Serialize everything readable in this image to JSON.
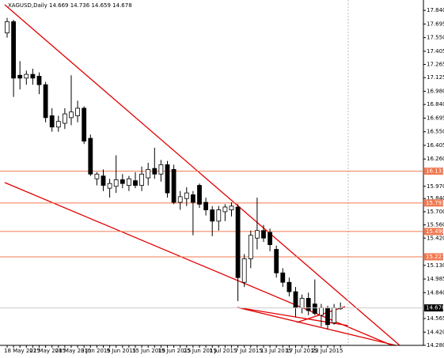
{
  "chart_data": {
    "type": "candlestick",
    "title": "XAGUSD,Daily 14.669 14.736 14.659 14.678",
    "categories": [
      "18 May 2015",
      null,
      null,
      null,
      "22 May 2015",
      null,
      null,
      null,
      "28 May 2015",
      null,
      null,
      null,
      "3 Jun 2015",
      null,
      null,
      null,
      "9 Jun 2015",
      null,
      null,
      null,
      "15 Jun 2015",
      null,
      null,
      null,
      "19 Jun 2015",
      null,
      null,
      null,
      "25 Jun 2015",
      null,
      null,
      null,
      "1 Jul 2015",
      null,
      null,
      null,
      "7 Jul 2015",
      null,
      null,
      null,
      "13 Jul 2015",
      null,
      null,
      null,
      "17 Jul 2015",
      null,
      null,
      null,
      "23 Jul 2015",
      null,
      null,
      null,
      null
    ],
    "open": [
      17.6,
      17.72,
      17.15,
      17.12,
      17.16,
      17.14,
      17.05,
      16.72,
      16.6,
      16.64,
      16.7,
      16.72,
      16.8,
      16.48,
      16.05,
      16.08,
      15.95,
      15.97,
      16.04,
      15.98,
      16.03,
      15.98,
      16.06,
      16.16,
      16.1,
      16.2,
      16.15,
      15.8,
      15.84,
      15.88,
      15.98,
      15.8,
      15.72,
      15.6,
      15.7,
      15.72,
      15.75,
      14.95,
      15.2,
      15.42,
      15.5,
      15.48,
      15.3,
      15.05,
      14.95,
      14.85,
      14.68,
      14.78,
      14.72,
      14.6,
      14.68,
      14.52,
      14.669
    ],
    "high": [
      17.76,
      17.74,
      17.3,
      17.2,
      17.22,
      17.18,
      17.08,
      16.8,
      16.72,
      16.8,
      17.15,
      16.88,
      16.82,
      16.52,
      16.12,
      16.15,
      16.05,
      16.3,
      16.1,
      16.08,
      16.12,
      16.18,
      16.22,
      16.38,
      16.25,
      16.24,
      16.2,
      15.92,
      15.96,
      15.92,
      16.0,
      15.85,
      15.76,
      15.76,
      15.78,
      15.8,
      15.78,
      15.25,
      15.5,
      15.85,
      15.56,
      15.52,
      15.34,
      15.1,
      15.0,
      14.9,
      14.82,
      14.84,
      14.98,
      14.72,
      14.7,
      14.72,
      14.736
    ],
    "low": [
      17.55,
      16.92,
      17.0,
      17.05,
      17.05,
      16.95,
      16.65,
      16.55,
      16.55,
      16.58,
      16.62,
      16.65,
      16.42,
      16.08,
      15.98,
      15.92,
      15.85,
      15.9,
      15.95,
      15.92,
      15.95,
      15.92,
      15.98,
      16.05,
      16.02,
      15.85,
      15.78,
      15.72,
      15.76,
      15.45,
      15.74,
      15.66,
      15.44,
      15.5,
      15.6,
      15.65,
      14.75,
      14.9,
      15.1,
      15.3,
      15.38,
      15.28,
      15.0,
      14.9,
      14.8,
      14.58,
      14.62,
      14.6,
      14.6,
      14.48,
      14.45,
      14.5,
      14.659
    ],
    "close": [
      17.72,
      17.12,
      17.12,
      17.16,
      17.12,
      17.05,
      16.7,
      16.6,
      16.66,
      16.74,
      16.76,
      16.8,
      16.45,
      16.1,
      16.1,
      15.98,
      16.0,
      16.04,
      16.0,
      16.05,
      15.98,
      16.1,
      16.15,
      16.1,
      16.2,
      15.9,
      15.8,
      15.86,
      15.9,
      15.8,
      15.78,
      15.72,
      15.6,
      15.72,
      15.75,
      15.76,
      15.0,
      15.2,
      15.45,
      15.5,
      15.42,
      15.35,
      15.05,
      14.95,
      14.85,
      14.68,
      14.78,
      14.65,
      14.62,
      14.68,
      14.5,
      14.68,
      14.678
    ],
    "levels": [
      {
        "value": 16.131,
        "label": "16.131"
      },
      {
        "value": 15.793,
        "label": "15.793"
      },
      {
        "value": 15.49,
        "label": "15.490"
      },
      {
        "value": 15.221,
        "label": "15.221"
      }
    ],
    "level_color": "#f07850",
    "ylim": [
      14.28,
      17.95
    ],
    "yticks": [
      {
        "value": 17.84,
        "label": "17.840"
      },
      {
        "value": 17.695,
        "label": "17.695"
      },
      {
        "value": 17.55,
        "label": "17.550"
      },
      {
        "value": 17.405,
        "label": "17.405"
      },
      {
        "value": 17.265,
        "label": "17.265"
      },
      {
        "value": 17.125,
        "label": "17.125"
      },
      {
        "value": 16.98,
        "label": "16.980"
      },
      {
        "value": 16.84,
        "label": "16.840"
      },
      {
        "value": 16.695,
        "label": "16.695"
      },
      {
        "value": 16.55,
        "label": "16.550"
      },
      {
        "value": 16.405,
        "label": "16.405"
      },
      {
        "value": 16.26,
        "label": "16.260"
      },
      {
        "value": 15.97,
        "label": "15.970"
      },
      {
        "value": 15.84,
        "label": "15.840"
      },
      {
        "value": 15.7,
        "label": "15.700"
      },
      {
        "value": 15.56,
        "label": "15.560"
      },
      {
        "value": 15.42,
        "label": "15.420"
      },
      {
        "value": 15.13,
        "label": "15.130"
      },
      {
        "value": 14.985,
        "label": "14.985"
      },
      {
        "value": 14.84,
        "label": "14.840"
      },
      {
        "value": 14.565,
        "label": "14.565"
      },
      {
        "value": 14.42,
        "label": "14.420"
      },
      {
        "value": 14.28,
        "label": "14.280"
      }
    ]
  }
}
